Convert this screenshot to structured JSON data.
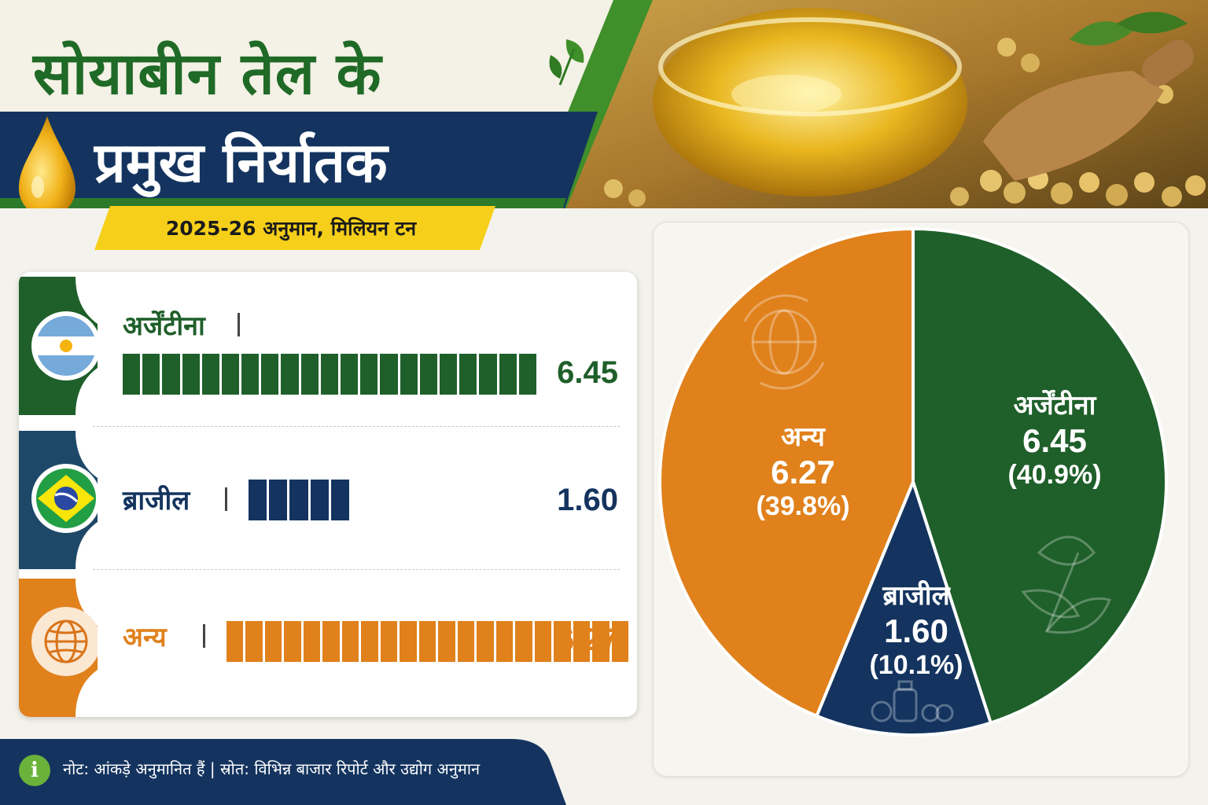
{
  "header": {
    "title_line1": "सोयाबीन तेल के",
    "title_line2": "प्रमुख निर्यातक",
    "subtitle": "2025-26 अनुमान, मिलियन टन"
  },
  "colors": {
    "argentina": "#1f5f2a",
    "brazil": "#14345f",
    "others": "#e0811c",
    "title_green": "#1f6a26",
    "navy": "#14345f",
    "yellow": "#f6cf1a"
  },
  "rows": [
    {
      "label": "अर्जेंटीना",
      "value": "6.45",
      "icon": "argentina-flag-icon"
    },
    {
      "label": "ब्राजील",
      "value": "1.60",
      "icon": "brazil-flag-icon"
    },
    {
      "label": "अन्य",
      "value": "6.27",
      "icon": "globe-icon"
    }
  ],
  "pie_labels": [
    {
      "name": "अर्जेंटीना",
      "value": "6.45",
      "pct": "(40.9%)"
    },
    {
      "name": "ब्राजील",
      "value": "1.60",
      "pct": "(10.1%)"
    },
    {
      "name": "अन्य",
      "value": "6.27",
      "pct": "(39.8%)"
    }
  ],
  "footer": {
    "info_icon": "i",
    "text": "नोट: आंकड़े अनुमानित हैं | स्रोत: विभिन्न बाजार रिपोर्ट और उद्योग अनुमान"
  },
  "chart_data": [
    {
      "type": "bar",
      "categories": [
        "अर्जेंटीना",
        "ब्राजील",
        "अन्य"
      ],
      "values": [
        6.45,
        1.6,
        6.27
      ],
      "title": "सोयाबीन तेल के प्रमुख निर्यातक",
      "subtitle": "2025-26 अनुमान, मिलियन टन",
      "orientation": "horizontal",
      "colors": [
        "#1f5f2a",
        "#14345f",
        "#e0811c"
      ]
    },
    {
      "type": "pie",
      "categories": [
        "अर्जेंटीना",
        "ब्राजील",
        "अन्य"
      ],
      "values": [
        6.45,
        1.6,
        6.27
      ],
      "percentages": [
        40.9,
        10.1,
        39.8
      ],
      "colors": [
        "#1f5f2a",
        "#14345f",
        "#e0811c"
      ]
    }
  ]
}
